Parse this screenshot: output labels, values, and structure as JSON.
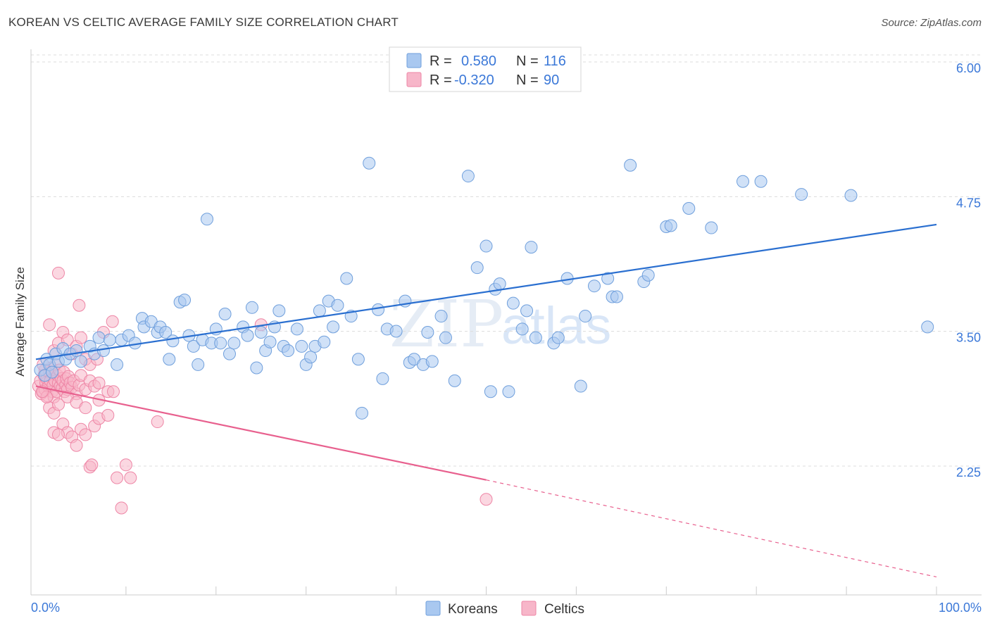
{
  "header": {
    "title": "KOREAN VS CELTIC AVERAGE FAMILY SIZE CORRELATION CHART",
    "source": "Source: ZipAtlas.com"
  },
  "watermark": {
    "part1": "ZIP",
    "part2": "atlas"
  },
  "legend": {
    "rows": [
      {
        "r_label": "R =",
        "r_value": "0.580",
        "n_label": "N =",
        "n_value": "116"
      },
      {
        "r_label": "R =",
        "r_value": "-0.320",
        "n_label": "N =",
        "n_value": "90"
      }
    ]
  },
  "bottom_legend": {
    "series1": "Koreans",
    "series2": "Celtics"
  },
  "colors": {
    "koreans_fill": "#a9c8f0",
    "koreans_stroke": "#6f9fdc",
    "koreans_line": "#2a6fd0",
    "celtics_fill": "#f7b6c9",
    "celtics_stroke": "#ee86a6",
    "celtics_line": "#e8608e",
    "grid": "#dcdcdc",
    "axis_label": "#3b78d8"
  },
  "chart_data": {
    "type": "scatter",
    "title": "KOREAN VS CELTIC AVERAGE FAMILY SIZE CORRELATION CHART",
    "xlabel": "",
    "ylabel": "Average Family Size",
    "x_tick_labels": [
      "0.0%",
      "100.0%"
    ],
    "y_ticks": [
      2.25,
      3.5,
      4.75,
      6.0
    ],
    "y_tick_labels": [
      "2.25",
      "3.50",
      "4.75",
      "6.00"
    ],
    "xlim": [
      0,
      100
    ],
    "ylim": [
      1.12,
      6.12
    ],
    "grid": true,
    "legend_position": "top-center",
    "series": [
      {
        "name": "Koreans",
        "r": 0.58,
        "n": 116,
        "trend": {
          "x": [
            0,
            100
          ],
          "y": [
            3.3,
            4.55
          ]
        },
        "points": [
          [
            0.5,
            3.2
          ],
          [
            1.0,
            3.15
          ],
          [
            1.2,
            3.3
          ],
          [
            1.5,
            3.25
          ],
          [
            1.8,
            3.18
          ],
          [
            2.2,
            3.35
          ],
          [
            2.5,
            3.28
          ],
          [
            3.0,
            3.4
          ],
          [
            3.3,
            3.3
          ],
          [
            3.8,
            3.35
          ],
          [
            4.5,
            3.38
          ],
          [
            5.0,
            3.28
          ],
          [
            6.0,
            3.42
          ],
          [
            6.5,
            3.35
          ],
          [
            7.0,
            3.5
          ],
          [
            7.5,
            3.38
          ],
          [
            8.2,
            3.48
          ],
          [
            9.0,
            3.25
          ],
          [
            9.5,
            3.48
          ],
          [
            10.3,
            3.52
          ],
          [
            11.0,
            3.45
          ],
          [
            11.8,
            3.68
          ],
          [
            12.0,
            3.6
          ],
          [
            12.8,
            3.65
          ],
          [
            13.5,
            3.55
          ],
          [
            13.8,
            3.6
          ],
          [
            14.4,
            3.55
          ],
          [
            14.8,
            3.3
          ],
          [
            15.2,
            3.47
          ],
          [
            16.0,
            3.83
          ],
          [
            16.5,
            3.85
          ],
          [
            17.0,
            3.52
          ],
          [
            17.5,
            3.42
          ],
          [
            18.0,
            3.25
          ],
          [
            18.5,
            3.48
          ],
          [
            19.0,
            4.6
          ],
          [
            19.5,
            3.45
          ],
          [
            20.0,
            3.58
          ],
          [
            20.5,
            3.45
          ],
          [
            21.0,
            3.72
          ],
          [
            21.5,
            3.35
          ],
          [
            22.0,
            3.45
          ],
          [
            23.0,
            3.6
          ],
          [
            23.5,
            3.52
          ],
          [
            24.0,
            3.78
          ],
          [
            24.5,
            3.22
          ],
          [
            25.0,
            3.55
          ],
          [
            25.5,
            3.38
          ],
          [
            26.0,
            3.46
          ],
          [
            26.5,
            3.6
          ],
          [
            27.0,
            3.75
          ],
          [
            27.5,
            3.42
          ],
          [
            28.0,
            3.38
          ],
          [
            29.0,
            3.58
          ],
          [
            29.5,
            3.42
          ],
          [
            30.0,
            3.25
          ],
          [
            30.5,
            3.32
          ],
          [
            31.0,
            3.42
          ],
          [
            31.5,
            3.75
          ],
          [
            32.0,
            3.46
          ],
          [
            32.5,
            3.84
          ],
          [
            33.0,
            3.6
          ],
          [
            33.5,
            3.8
          ],
          [
            34.5,
            4.05
          ],
          [
            35.0,
            3.7
          ],
          [
            35.8,
            3.3
          ],
          [
            36.2,
            2.8
          ],
          [
            37.0,
            5.12
          ],
          [
            38.0,
            3.76
          ],
          [
            38.5,
            3.12
          ],
          [
            39.0,
            3.58
          ],
          [
            40.0,
            3.56
          ],
          [
            41.0,
            3.84
          ],
          [
            41.5,
            3.27
          ],
          [
            42.0,
            3.3
          ],
          [
            43.0,
            3.25
          ],
          [
            43.5,
            3.55
          ],
          [
            44.0,
            3.28
          ],
          [
            45.0,
            3.7
          ],
          [
            45.5,
            3.5
          ],
          [
            46.5,
            3.1
          ],
          [
            48.0,
            5.0
          ],
          [
            49.0,
            4.15
          ],
          [
            50.0,
            4.35
          ],
          [
            50.5,
            3.0
          ],
          [
            51.0,
            3.95
          ],
          [
            51.5,
            4.0
          ],
          [
            52.5,
            3.0
          ],
          [
            53.0,
            3.82
          ],
          [
            54.0,
            3.58
          ],
          [
            54.5,
            3.75
          ],
          [
            55.0,
            4.34
          ],
          [
            55.5,
            3.5
          ],
          [
            57.5,
            3.45
          ],
          [
            58.0,
            3.5
          ],
          [
            59.0,
            4.05
          ],
          [
            60.5,
            3.05
          ],
          [
            61.0,
            3.7
          ],
          [
            62.0,
            3.98
          ],
          [
            63.5,
            4.05
          ],
          [
            64.0,
            3.88
          ],
          [
            64.5,
            3.88
          ],
          [
            66.0,
            5.1
          ],
          [
            67.5,
            4.02
          ],
          [
            68.0,
            4.08
          ],
          [
            70.0,
            4.53
          ],
          [
            70.5,
            4.54
          ],
          [
            72.5,
            4.7
          ],
          [
            75.0,
            4.52
          ],
          [
            78.5,
            4.95
          ],
          [
            80.5,
            4.95
          ],
          [
            85.0,
            4.83
          ],
          [
            90.5,
            4.82
          ],
          [
            99.0,
            3.6
          ]
        ]
      },
      {
        "name": "Celtics",
        "r": -0.32,
        "n": 90,
        "trend": {
          "x": [
            0,
            50
          ],
          "y": [
            3.05,
            2.18
          ],
          "dashed_extension": {
            "x": [
              50,
              100
            ],
            "y": [
              2.18,
              1.28
            ]
          }
        },
        "points": [
          [
            0.3,
            3.05
          ],
          [
            0.5,
            3.1
          ],
          [
            0.6,
            2.98
          ],
          [
            0.8,
            3.0
          ],
          [
            0.9,
            3.15
          ],
          [
            1.0,
            3.02
          ],
          [
            1.1,
            3.08
          ],
          [
            1.2,
            3.12
          ],
          [
            1.3,
            2.96
          ],
          [
            1.4,
            3.05
          ],
          [
            1.5,
            3.18
          ],
          [
            1.6,
            3.1
          ],
          [
            1.7,
            3.22
          ],
          [
            1.8,
            3.0
          ],
          [
            1.9,
            3.06
          ],
          [
            2.0,
            2.95
          ],
          [
            2.1,
            3.1
          ],
          [
            2.2,
            3.25
          ],
          [
            2.3,
            3.0
          ],
          [
            2.4,
            3.15
          ],
          [
            2.5,
            3.08
          ],
          [
            2.6,
            3.2
          ],
          [
            2.7,
            3.05
          ],
          [
            2.8,
            3.12
          ],
          [
            2.9,
            3.03
          ],
          [
            3.0,
            3.1
          ],
          [
            3.1,
            3.18
          ],
          [
            3.2,
            3.0
          ],
          [
            3.3,
            3.06
          ],
          [
            3.4,
            3.12
          ],
          [
            3.5,
            3.02
          ],
          [
            3.6,
            3.14
          ],
          [
            3.8,
            3.08
          ],
          [
            4.0,
            3.04
          ],
          [
            4.2,
            3.1
          ],
          [
            4.5,
            2.98
          ],
          [
            4.8,
            3.06
          ],
          [
            5.0,
            3.15
          ],
          [
            5.5,
            3.02
          ],
          [
            6.0,
            3.1
          ],
          [
            1.5,
            3.62
          ],
          [
            2.0,
            3.38
          ],
          [
            2.5,
            3.45
          ],
          [
            3.0,
            3.55
          ],
          [
            3.5,
            3.48
          ],
          [
            4.0,
            3.35
          ],
          [
            4.5,
            3.42
          ],
          [
            5.0,
            3.5
          ],
          [
            5.5,
            3.3
          ],
          [
            6.0,
            3.25
          ],
          [
            2.5,
            4.1
          ],
          [
            4.8,
            3.8
          ],
          [
            8.5,
            3.65
          ],
          [
            7.5,
            3.55
          ],
          [
            6.8,
            3.3
          ],
          [
            6.5,
            3.05
          ],
          [
            7.0,
            3.08
          ],
          [
            8.0,
            3.0
          ],
          [
            8.6,
            3.0
          ],
          [
            7.0,
            2.92
          ],
          [
            1.5,
            2.85
          ],
          [
            2.0,
            2.8
          ],
          [
            2.5,
            2.88
          ],
          [
            3.0,
            2.7
          ],
          [
            3.5,
            2.62
          ],
          [
            4.0,
            2.58
          ],
          [
            4.5,
            2.5
          ],
          [
            5.0,
            2.65
          ],
          [
            5.5,
            2.6
          ],
          [
            6.5,
            2.68
          ],
          [
            2.0,
            2.62
          ],
          [
            2.5,
            2.6
          ],
          [
            3.5,
            2.95
          ],
          [
            4.5,
            2.9
          ],
          [
            5.5,
            2.85
          ],
          [
            6.0,
            2.3
          ],
          [
            6.2,
            2.32
          ],
          [
            7.0,
            2.75
          ],
          [
            8.0,
            2.78
          ],
          [
            9.0,
            2.2
          ],
          [
            10.5,
            2.2
          ],
          [
            13.5,
            2.72
          ],
          [
            10.0,
            2.32
          ],
          [
            9.5,
            1.92
          ],
          [
            50.0,
            2.0
          ],
          [
            25.0,
            3.62
          ],
          [
            1.0,
            3.2
          ],
          [
            0.8,
            3.25
          ],
          [
            1.2,
            2.95
          ],
          [
            0.7,
            3.0
          ]
        ]
      }
    ]
  }
}
